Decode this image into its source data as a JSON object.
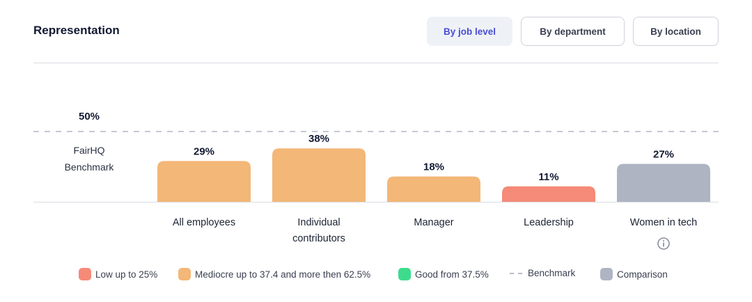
{
  "header": {
    "title": "Representation",
    "tabs": [
      {
        "label": "By job level",
        "active": true
      },
      {
        "label": "By department",
        "active": false
      },
      {
        "label": "By location",
        "active": false
      }
    ]
  },
  "benchmark": {
    "value": 50,
    "value_label": "50%",
    "label_line1": "FairHQ",
    "label_line2": "Benchmark"
  },
  "chart_data": {
    "type": "bar",
    "categories": [
      "All employees",
      "Individual contributors",
      "Manager",
      "Leadership",
      "Women in tech"
    ],
    "values": [
      29,
      38,
      18,
      11,
      27
    ],
    "data_labels": [
      "29%",
      "38%",
      "18%",
      "11%",
      "27%"
    ],
    "bar_status": [
      "mediocre",
      "mediocre",
      "mediocre",
      "low",
      "comparison"
    ],
    "ylim": [
      0,
      50
    ],
    "benchmark_line": 50,
    "grid": false
  },
  "categories_display": [
    {
      "line1": "All employees",
      "line2": ""
    },
    {
      "line1": "Individual",
      "line2": "contributors"
    },
    {
      "line1": "Manager",
      "line2": ""
    },
    {
      "line1": "Leadership",
      "line2": ""
    },
    {
      "line1": "Women in tech",
      "line2": ""
    }
  ],
  "legend": [
    {
      "label": "Low up to 25%",
      "type": "low"
    },
    {
      "label": "Mediocre up to 37.4 and more then 62.5%",
      "type": "mediocre"
    },
    {
      "label": "Good from 37.5%",
      "type": "good"
    },
    {
      "label": "Benchmark",
      "type": "benchmark"
    },
    {
      "label": "Comparison",
      "type": "comparison"
    }
  ],
  "colors": {
    "low": "#f58a78",
    "mediocre": "#f3b777",
    "good": "#3ddc8c",
    "comparison": "#aeb4c2",
    "benchmark": "#c5c8d4",
    "accent": "#4a4ed4"
  },
  "icons": {
    "info": "info-icon"
  }
}
